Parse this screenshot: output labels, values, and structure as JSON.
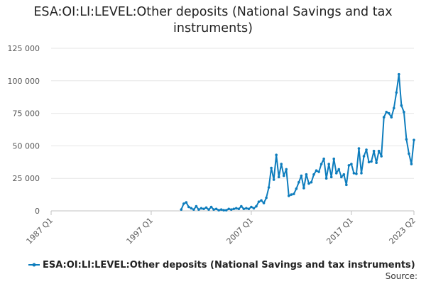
{
  "chart_data": {
    "type": "line",
    "title": "ESA:OI:LI:LEVEL:Other deposits (National Savings and tax instruments)",
    "title_lines": [
      "ESA:OI:LI:LEVEL:Other deposits (National Savings and tax",
      "instruments)"
    ],
    "xlabel": "",
    "ylabel": "",
    "x_tick_labels": [
      "1987 Q1",
      "1997 Q1",
      "2007 Q1",
      "2017 Q1",
      "2023 Q2"
    ],
    "x_tick_positions": [
      1987.0,
      1997.0,
      2007.0,
      2017.0,
      2023.25
    ],
    "xlim": [
      1987.0,
      2023.25
    ],
    "y_tick_labels": [
      "0",
      "25 000",
      "50 000",
      "75 000",
      "100 000",
      "125 000"
    ],
    "y_tick_values": [
      0,
      25000,
      50000,
      75000,
      100000,
      125000
    ],
    "ylim": [
      0,
      125000
    ],
    "grid": "horizontal",
    "legend_position": "bottom",
    "color": "#0e7dbd",
    "series": [
      {
        "name": "ESA:OI:LI:LEVEL:Other deposits (National Savings and tax instruments)",
        "x": [
          2000.0,
          2000.25,
          2000.5,
          2000.75,
          2001.0,
          2001.25,
          2001.5,
          2001.75,
          2002.0,
          2002.25,
          2002.5,
          2002.75,
          2003.0,
          2003.25,
          2003.5,
          2003.75,
          2004.0,
          2004.25,
          2004.5,
          2004.75,
          2005.0,
          2005.25,
          2005.5,
          2005.75,
          2006.0,
          2006.25,
          2006.5,
          2006.75,
          2007.0,
          2007.25,
          2007.5,
          2007.75,
          2008.0,
          2008.25,
          2008.5,
          2008.75,
          2009.0,
          2009.25,
          2009.5,
          2009.75,
          2010.0,
          2010.25,
          2010.5,
          2010.75,
          2011.0,
          2011.25,
          2011.5,
          2011.75,
          2012.0,
          2012.25,
          2012.5,
          2012.75,
          2013.0,
          2013.25,
          2013.5,
          2013.75,
          2014.0,
          2014.25,
          2014.5,
          2014.75,
          2015.0,
          2015.25,
          2015.5,
          2015.75,
          2016.0,
          2016.25,
          2016.5,
          2016.75,
          2017.0,
          2017.25,
          2017.5,
          2017.75,
          2018.0,
          2018.25,
          2018.5,
          2018.75,
          2019.0,
          2019.25,
          2019.5,
          2019.75,
          2020.0,
          2020.25,
          2020.5,
          2020.75,
          2021.0,
          2021.25,
          2021.5,
          2021.75,
          2022.0,
          2022.25,
          2022.5,
          2022.75,
          2023.0,
          2023.25
        ],
        "values": [
          1000,
          5500,
          6500,
          3000,
          2000,
          1000,
          3500,
          1000,
          2000,
          1500,
          2500,
          1000,
          3000,
          1000,
          1500,
          500,
          1000,
          500,
          500,
          1500,
          1000,
          1500,
          2000,
          1500,
          3500,
          1500,
          2000,
          1500,
          3000,
          2000,
          3500,
          7000,
          8000,
          6000,
          10000,
          18000,
          33000,
          24000,
          43000,
          26000,
          36000,
          27000,
          32000,
          11500,
          12500,
          13000,
          17000,
          22000,
          27000,
          17500,
          28000,
          21000,
          22000,
          28000,
          31000,
          30000,
          36000,
          40000,
          25000,
          36000,
          26000,
          40000,
          29000,
          32000,
          26000,
          28000,
          20000,
          35000,
          36000,
          29000,
          28500,
          48000,
          29000,
          42000,
          47000,
          37500,
          38000,
          46000,
          37000,
          46000,
          42000,
          72000,
          76000,
          75000,
          72000,
          79000,
          91000,
          105000,
          81000,
          76000,
          55000,
          44000,
          36000,
          54500
        ]
      }
    ],
    "source_label": "Source:"
  }
}
